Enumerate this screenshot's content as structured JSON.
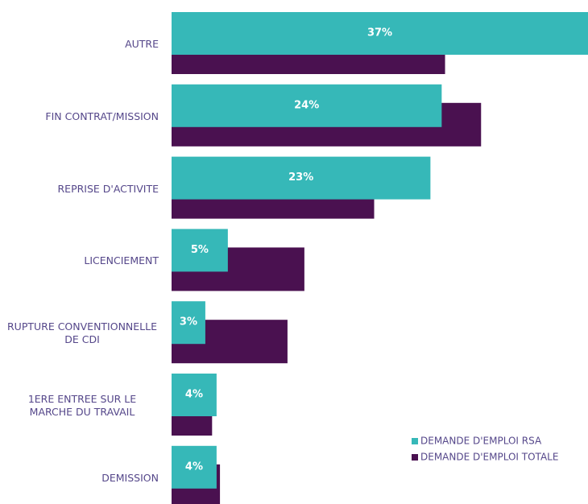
{
  "chart_data": {
    "type": "bar",
    "orientation": "horizontal",
    "categories": [
      "AUTRE",
      "FIN CONTRAT/MISSION",
      "REPRISE D'ACTIVITE",
      "LICENCIEMENT",
      "RUPTURE CONVENTIONNELLE DE CDI",
      "1ERE ENTREE SUR LE MARCHE DU TRAVAIL",
      "DEMISSION"
    ],
    "series": [
      {
        "name": "DEMANDE D'EMPLOI RSA",
        "color": "#36b8b8",
        "values": [
          37,
          24,
          23,
          5,
          3,
          4,
          4
        ],
        "value_labels": [
          "37%",
          "24%",
          "23%",
          "5%",
          "3%",
          "4%",
          "4%"
        ]
      },
      {
        "name": "DEMANDE D'EMPLOI TOTALE",
        "color": "#4a1150",
        "values": [
          24.3,
          27.5,
          18,
          11.8,
          10.3,
          3.6,
          4.3
        ]
      }
    ],
    "xlim": [
      0,
      37
    ],
    "legend": "lower right"
  }
}
